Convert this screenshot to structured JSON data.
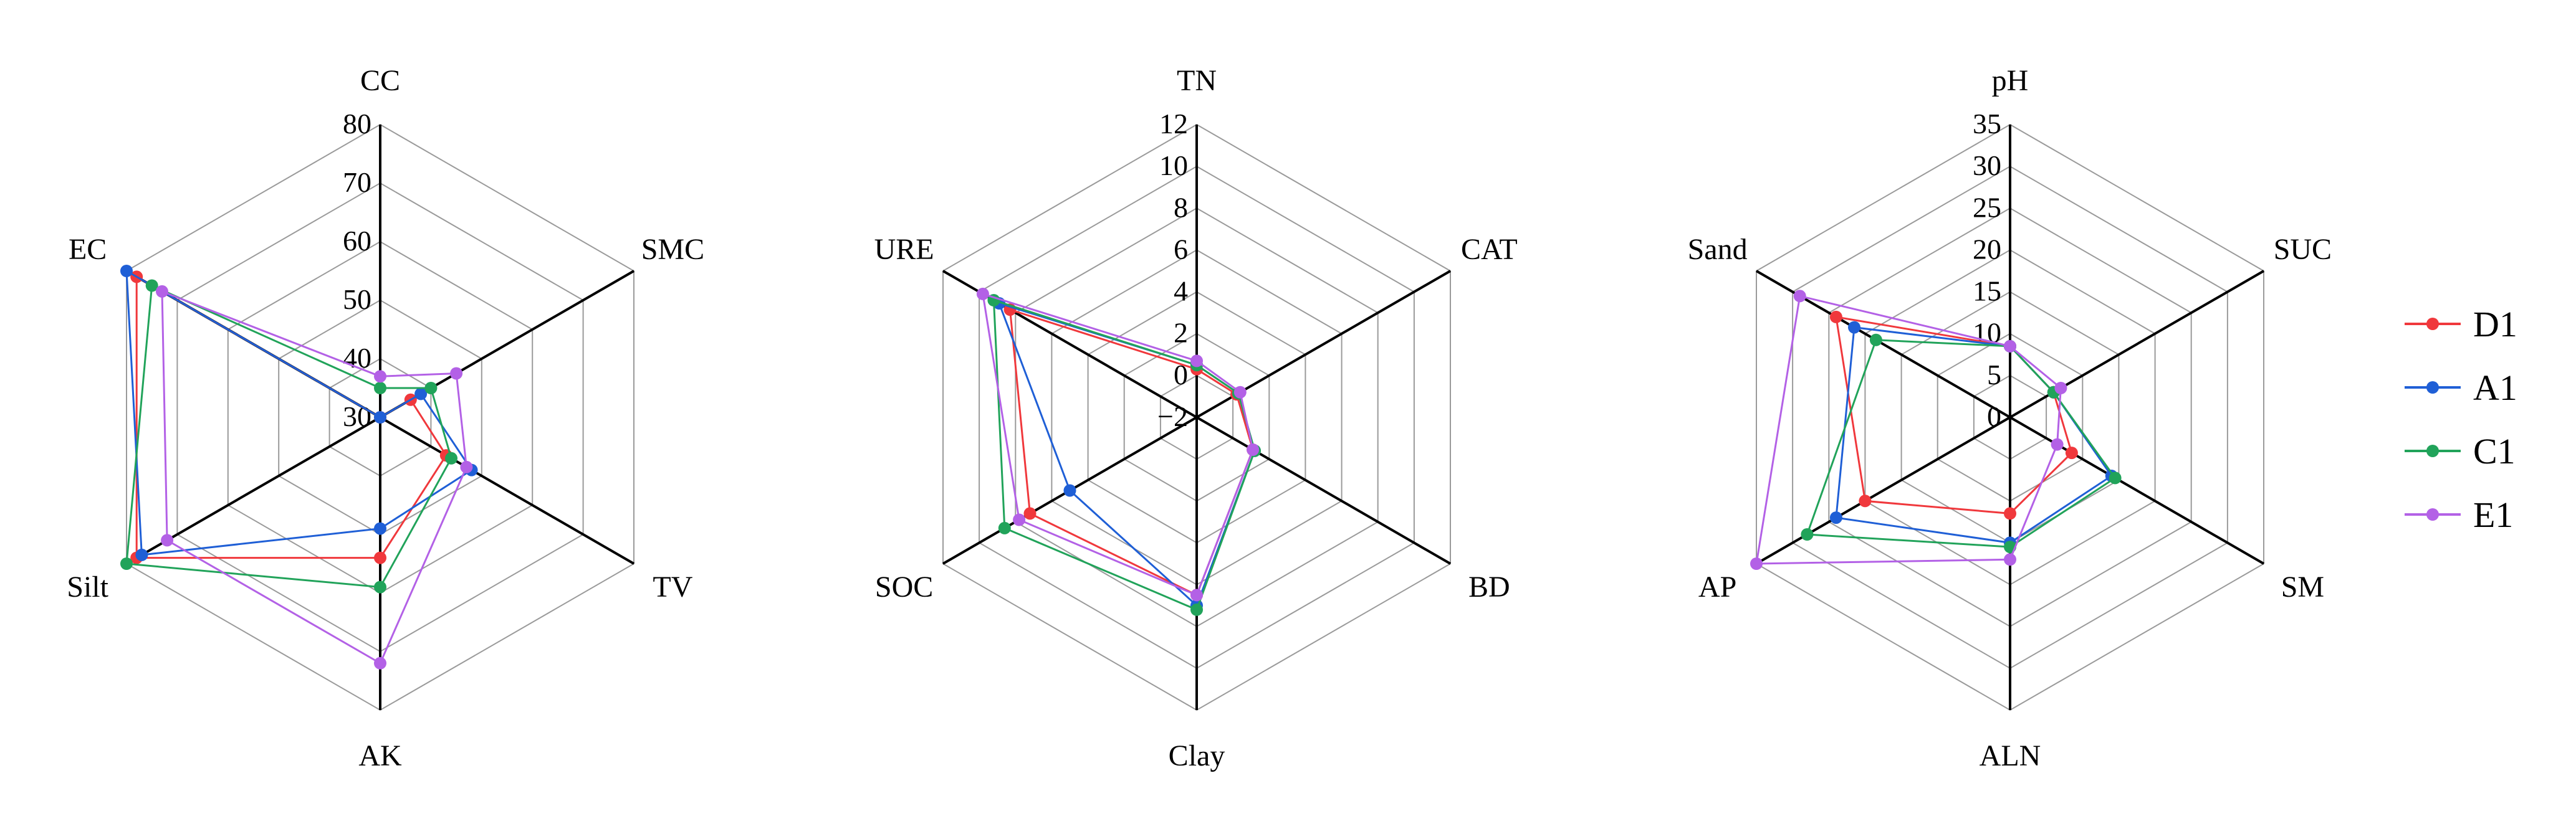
{
  "chart_data": [
    {
      "type": "radar",
      "axes": [
        "CC",
        "SMC",
        "TV",
        "AK",
        "Silt",
        "EC"
      ],
      "rlim": [
        30,
        80
      ],
      "ticks": [
        "30",
        "40",
        "50",
        "60",
        "70",
        "80"
      ],
      "series": [
        {
          "name": "D1",
          "color": "#f0383c",
          "values": [
            30,
            36,
            43,
            54,
            78,
            78
          ]
        },
        {
          "name": "A1",
          "color": "#1f5fd6",
          "values": [
            30,
            38,
            48,
            49,
            77,
            80
          ]
        },
        {
          "name": "C1",
          "color": "#21a35a",
          "values": [
            35,
            40,
            44,
            59,
            80,
            75
          ]
        },
        {
          "name": "E1",
          "color": "#b361e6",
          "values": [
            37,
            45,
            47,
            72,
            72,
            73
          ]
        }
      ]
    },
    {
      "type": "radar",
      "axes": [
        "TN",
        "CAT",
        "BD",
        "Clay",
        "SOC",
        "URE"
      ],
      "rlim": [
        -2,
        12
      ],
      "ticks": [
        "−2",
        "0",
        "2",
        "4",
        "6",
        "8",
        "10",
        "12"
      ],
      "series": [
        {
          "name": "D1",
          "color": "#f0383c",
          "values": [
            0.3,
            0.2,
            1.1,
            6.5,
            7.2,
            8.3
          ]
        },
        {
          "name": "A1",
          "color": "#1f5fd6",
          "values": [
            0.5,
            0.3,
            1.2,
            7.0,
            5.0,
            8.9
          ]
        },
        {
          "name": "C1",
          "color": "#21a35a",
          "values": [
            0.5,
            0.3,
            1.2,
            7.2,
            8.6,
            9.2
          ]
        },
        {
          "name": "E1",
          "color": "#b361e6",
          "values": [
            0.7,
            0.4,
            1.1,
            6.5,
            7.8,
            9.8
          ]
        }
      ]
    },
    {
      "type": "radar",
      "axes": [
        "pH",
        "SUC",
        "SM",
        "ALN",
        "AP",
        "Sand"
      ],
      "rlim": [
        0,
        35
      ],
      "ticks": [
        "0",
        "5",
        "10",
        "15",
        "20",
        "25",
        "30",
        "35"
      ],
      "series": [
        {
          "name": "D1",
          "color": "#f0383c",
          "values": [
            8.5,
            6,
            8.5,
            11.5,
            20,
            24
          ]
        },
        {
          "name": "A1",
          "color": "#1f5fd6",
          "values": [
            8.5,
            6,
            14,
            15,
            24,
            21.5
          ]
        },
        {
          "name": "C1",
          "color": "#21a35a",
          "values": [
            8.5,
            6,
            14.5,
            15.5,
            28,
            18.5
          ]
        },
        {
          "name": "E1",
          "color": "#b361e6",
          "values": [
            8.5,
            7,
            6.5,
            17,
            35,
            29
          ]
        }
      ]
    }
  ],
  "legend": [
    "D1",
    "A1",
    "C1",
    "E1"
  ]
}
